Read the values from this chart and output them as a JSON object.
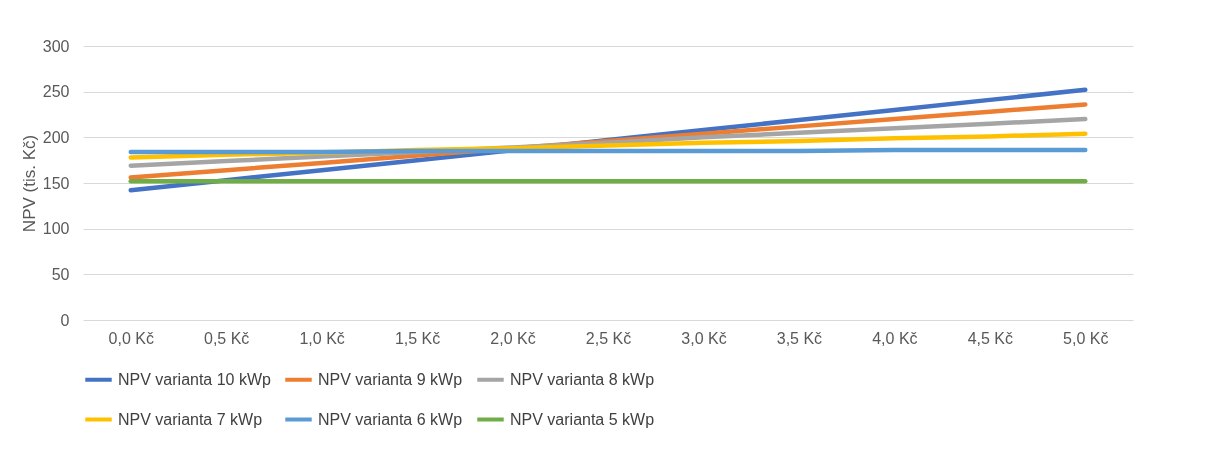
{
  "chart_data": {
    "type": "line",
    "ylabel": "NPV (tis. Kč)",
    "categories": [
      "0,0 Kč",
      "0,5 Kč",
      "1,0 Kč",
      "1,5 Kč",
      "2,0 Kč",
      "2,5 Kč",
      "3,0 Kč",
      "3,5 Kč",
      "4,0 Kč",
      "4,5 Kč",
      "5,0 Kč"
    ],
    "series": [
      {
        "name": "NPV varianta 10 kWp",
        "color": "#4472c4",
        "values": [
          142,
          153,
          164,
          175,
          186,
          197,
          208,
          219,
          230,
          241,
          252
        ]
      },
      {
        "name": "NPV varianta 9 kWp",
        "color": "#ed7d31",
        "values": [
          156,
          164,
          172,
          180,
          188,
          196,
          204,
          212,
          220,
          228,
          236
        ]
      },
      {
        "name": "NPV varianta 8 kWp",
        "color": "#a5a5a5",
        "values": [
          169,
          174,
          179,
          184,
          189,
          194,
          200,
          205,
          210,
          215,
          220
        ]
      },
      {
        "name": "NPV varianta 7 kWp",
        "color": "#ffc000",
        "values": [
          178,
          181,
          183,
          186,
          188,
          191,
          194,
          196,
          199,
          201,
          204
        ]
      },
      {
        "name": "NPV varianta 6 kWp",
        "color": "#5b9bd5",
        "values": [
          184,
          184,
          184,
          185,
          185,
          185,
          185,
          185,
          186,
          186,
          186
        ]
      },
      {
        "name": "NPV varianta 5 kWp",
        "color": "#70ad47",
        "values": [
          152,
          152,
          152,
          152,
          152,
          152,
          152,
          152,
          152,
          152,
          152
        ]
      }
    ],
    "ylim": [
      0,
      300
    ],
    "yticks": [
      0,
      50,
      100,
      150,
      200,
      250,
      300
    ],
    "grid": "y",
    "legend": "bottom",
    "marker": "none",
    "line_style": "solid"
  }
}
